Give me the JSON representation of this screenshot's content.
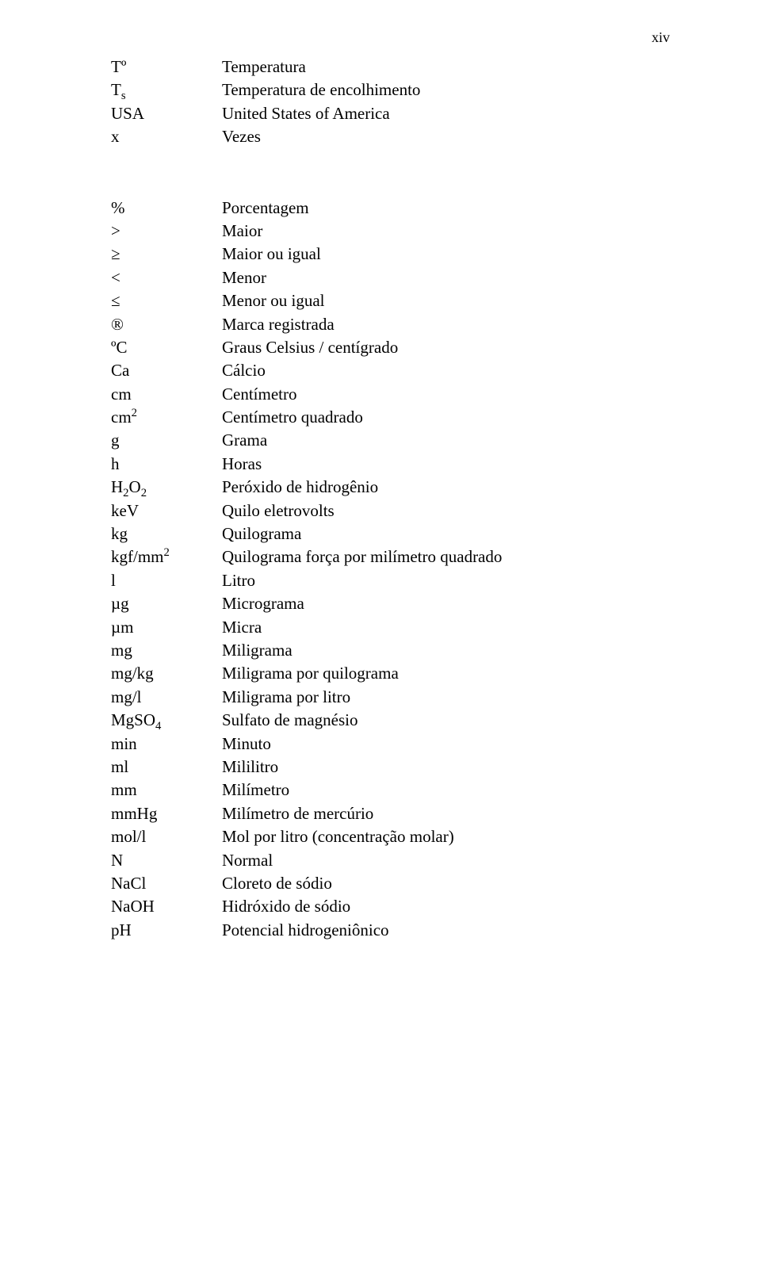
{
  "page_number_label": "xiv",
  "block1": [
    {
      "symbol_html": "Tº",
      "desc": "Temperatura"
    },
    {
      "symbol_html": "T<span class=\"sub\">s</span>",
      "desc": "Temperatura de encolhimento"
    },
    {
      "symbol_html": "USA",
      "desc": "United States of America"
    },
    {
      "symbol_html": "x",
      "desc": "Vezes"
    }
  ],
  "block2": [
    {
      "symbol_html": "%",
      "desc": "Porcentagem"
    },
    {
      "symbol_html": "&gt;",
      "desc": "Maior"
    },
    {
      "symbol_html": "≥",
      "desc": "Maior ou igual"
    },
    {
      "symbol_html": "&lt;",
      "desc": "Menor"
    },
    {
      "symbol_html": "≤",
      "desc": "Menor ou igual"
    },
    {
      "symbol_html": "®",
      "desc": "Marca registrada"
    },
    {
      "symbol_html": "ºC",
      "desc": "Graus Celsius / centígrado"
    },
    {
      "symbol_html": "Ca",
      "desc": "Cálcio"
    },
    {
      "symbol_html": "cm",
      "desc": "Centímetro"
    },
    {
      "symbol_html": "cm<span class=\"sup\">2</span>",
      "desc": "Centímetro quadrado"
    },
    {
      "symbol_html": "g",
      "desc": "Grama"
    },
    {
      "symbol_html": "h",
      "desc": "Horas"
    },
    {
      "symbol_html": "H<span class=\"sub\">2</span>O<span class=\"sub\">2</span>",
      "desc": "Peróxido de hidrogênio"
    },
    {
      "symbol_html": "keV",
      "desc": "Quilo eletrovolts"
    },
    {
      "symbol_html": "kg",
      "desc": "Quilograma"
    },
    {
      "symbol_html": "kgf/mm<span class=\"sup\">2</span>",
      "desc": "Quilograma força por milímetro quadrado"
    },
    {
      "symbol_html": "l",
      "desc": "Litro"
    },
    {
      "symbol_html": "µg",
      "desc": "Micrograma"
    },
    {
      "symbol_html": "µm",
      "desc": "Micra"
    },
    {
      "symbol_html": "mg",
      "desc": "Miligrama"
    },
    {
      "symbol_html": "mg/kg",
      "desc": "Miligrama por quilograma"
    },
    {
      "symbol_html": "mg/l",
      "desc": "Miligrama por litro"
    },
    {
      "symbol_html": "MgSO<span class=\"sub\">4</span>",
      "desc": "Sulfato de magnésio"
    },
    {
      "symbol_html": "min",
      "desc": "Minuto"
    },
    {
      "symbol_html": "ml",
      "desc": "Mililitro"
    },
    {
      "symbol_html": "mm",
      "desc": "Milímetro"
    },
    {
      "symbol_html": "mmHg",
      "desc": "Milímetro de mercúrio"
    },
    {
      "symbol_html": "mol/l",
      "desc": "Mol por litro (concentração molar)"
    },
    {
      "symbol_html": "N",
      "desc": "Normal"
    },
    {
      "symbol_html": "NaCl",
      "desc": "Cloreto de sódio"
    },
    {
      "symbol_html": "NaOH",
      "desc": "Hidróxido de sódio"
    },
    {
      "symbol_html": "pH",
      "desc": "Potencial hidrogeniônico"
    }
  ]
}
